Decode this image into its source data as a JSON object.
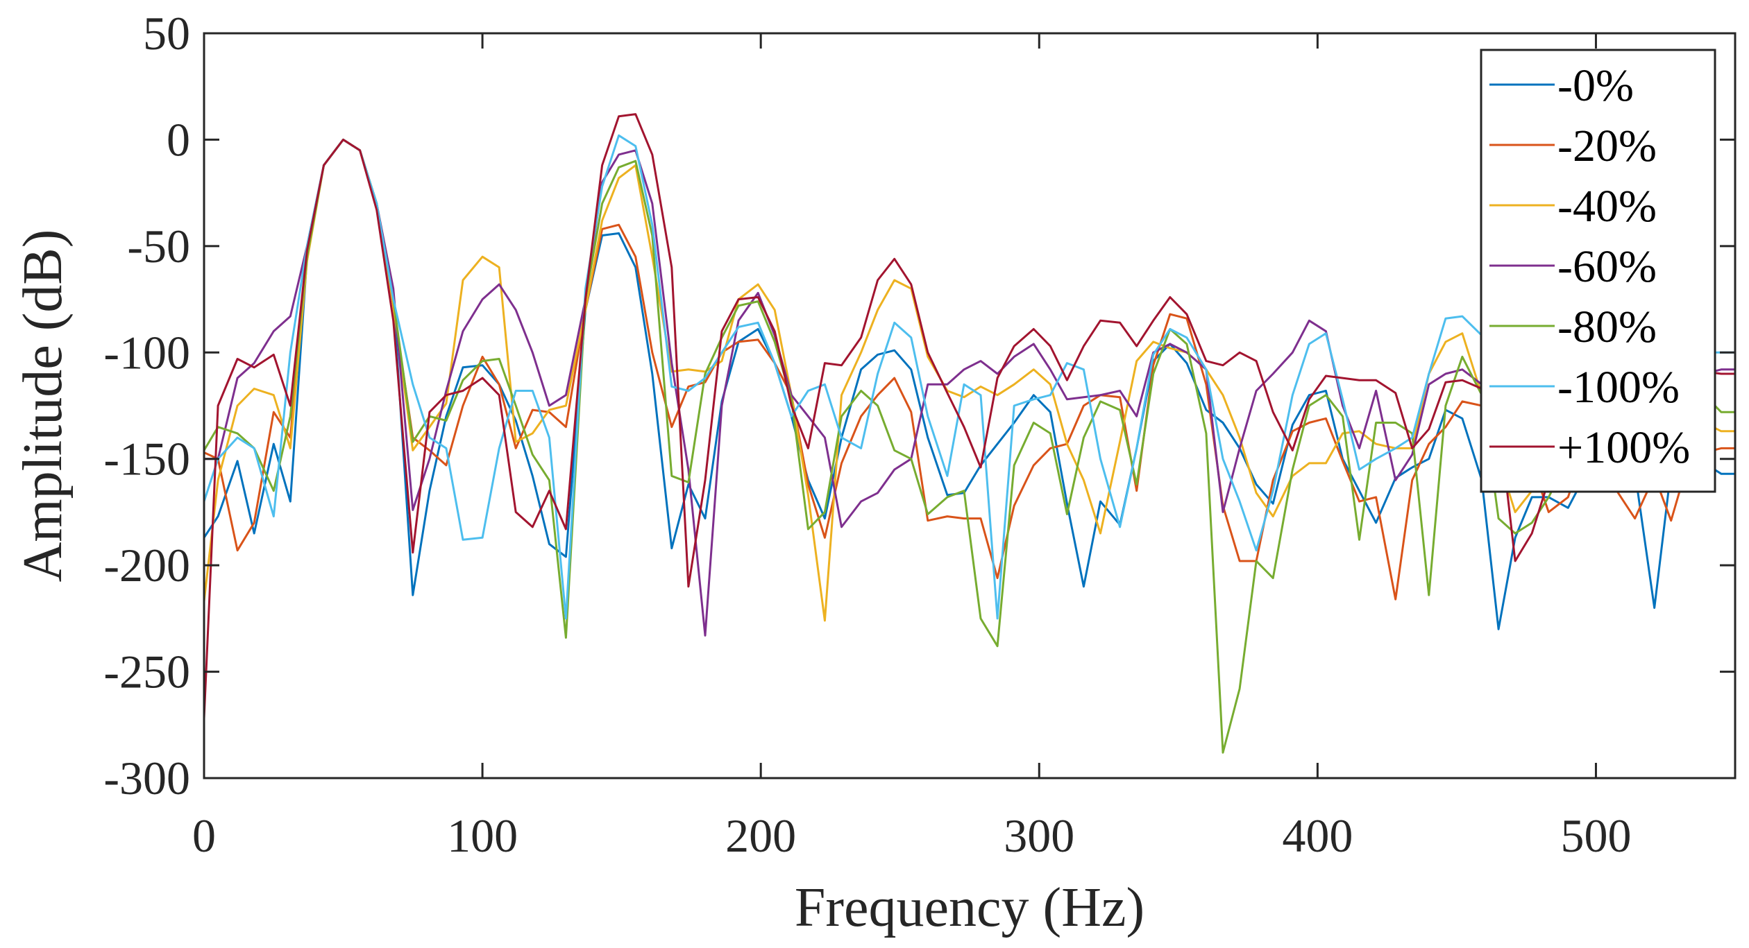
{
  "chart_data": {
    "type": "line",
    "xlabel": "Frequency (Hz)",
    "ylabel": "Amplitude (dB)",
    "xlim": [
      0,
      550
    ],
    "ylim": [
      -300,
      50
    ],
    "xticks": [
      0,
      100,
      200,
      300,
      400,
      500
    ],
    "yticks": [
      50,
      0,
      -50,
      -100,
      -150,
      -200,
      -250,
      -300
    ],
    "xtick_labels": [
      "0",
      "100",
      "200",
      "300",
      "400",
      "500"
    ],
    "ytick_labels": [
      "50",
      "0",
      "-50",
      "-100",
      "-150",
      "-200",
      "-250",
      "-300"
    ],
    "grid": false,
    "legend_position": "top-right",
    "x": [
      0,
      5,
      12,
      18,
      25,
      31,
      37,
      43,
      50,
      56,
      62,
      68,
      75,
      81,
      87,
      93,
      100,
      106,
      112,
      118,
      124,
      130,
      137,
      143,
      149,
      155,
      161,
      168,
      174,
      180,
      186,
      192,
      199,
      205,
      211,
      217,
      223,
      229,
      236,
      242,
      248,
      254,
      260,
      267,
      273,
      279,
      285,
      291,
      298,
      304,
      310,
      316,
      322,
      329,
      335,
      341,
      347,
      353,
      360,
      366,
      372,
      378,
      384,
      391,
      397,
      403,
      409,
      415,
      421,
      428,
      434,
      440,
      446,
      452,
      459,
      465,
      471,
      477,
      483,
      490,
      496,
      502,
      508,
      514,
      521,
      527,
      533,
      539,
      545,
      550
    ],
    "series": [
      {
        "name": "-0%",
        "color": "#0072BD",
        "values": [
          -187,
          -177,
          -151,
          -185,
          -143,
          -170,
          -55,
          -12,
          0,
          -5,
          -30,
          -75,
          -214,
          -165,
          -130,
          -107,
          -106,
          -115,
          -132,
          -158,
          -190,
          -196,
          -80,
          -45,
          -44,
          -60,
          -110,
          -192,
          -162,
          -178,
          -123,
          -95,
          -89,
          -105,
          -130,
          -160,
          -178,
          -140,
          -108,
          -101,
          -99,
          -108,
          -140,
          -167,
          -166,
          -153,
          -143,
          -133,
          -120,
          -128,
          -171,
          -210,
          -170,
          -181,
          -145,
          -104,
          -96,
          -105,
          -127,
          -133,
          -145,
          -162,
          -171,
          -134,
          -120,
          -118,
          -150,
          -165,
          -180,
          -159,
          -154,
          -150,
          -127,
          -131,
          -160,
          -230,
          -187,
          -168,
          -168,
          -173,
          -158,
          -155,
          -160,
          -156,
          -220,
          -155,
          -157,
          -152,
          -157,
          -157
        ]
      },
      {
        "name": "-20%",
        "color": "#D95319",
        "values": [
          -147,
          -150,
          -193,
          -180,
          -128,
          -140,
          -55,
          -12,
          0,
          -5,
          -32,
          -78,
          -140,
          -146,
          -153,
          -125,
          -102,
          -115,
          -145,
          -127,
          -128,
          -135,
          -80,
          -42,
          -40,
          -55,
          -100,
          -135,
          -116,
          -114,
          -100,
          -95,
          -94,
          -105,
          -120,
          -162,
          -187,
          -152,
          -130,
          -120,
          -112,
          -128,
          -179,
          -177,
          -178,
          -178,
          -206,
          -172,
          -153,
          -145,
          -143,
          -125,
          -120,
          -121,
          -165,
          -106,
          -82,
          -84,
          -115,
          -172,
          -198,
          -198,
          -160,
          -137,
          -133,
          -131,
          -151,
          -170,
          -168,
          -216,
          -160,
          -143,
          -135,
          -123,
          -125,
          -145,
          -135,
          -152,
          -175,
          -168,
          -145,
          -155,
          -166,
          -178,
          -158,
          -179,
          -152,
          -147,
          -145,
          -145
        ]
      },
      {
        "name": "-40%",
        "color": "#EDB120",
        "values": [
          -217,
          -160,
          -125,
          -117,
          -120,
          -145,
          -57,
          -12,
          0,
          -5,
          -30,
          -78,
          -146,
          -135,
          -124,
          -66,
          -55,
          -60,
          -142,
          -138,
          -127,
          -125,
          -80,
          -38,
          -18,
          -12,
          -55,
          -109,
          -108,
          -109,
          -104,
          -75,
          -68,
          -80,
          -120,
          -167,
          -226,
          -120,
          -100,
          -80,
          -66,
          -70,
          -102,
          -118,
          -121,
          -116,
          -120,
          -115,
          -108,
          -115,
          -143,
          -160,
          -185,
          -142,
          -104,
          -95,
          -98,
          -100,
          -108,
          -120,
          -140,
          -166,
          -177,
          -158,
          -152,
          -152,
          -138,
          -137,
          -143,
          -145,
          -145,
          -110,
          -95,
          -91,
          -120,
          -150,
          -175,
          -165,
          -163,
          -148,
          -150,
          -140,
          -146,
          -142,
          -148,
          -150,
          -140,
          -133,
          -137,
          -137
        ]
      },
      {
        "name": "-60%",
        "color": "#7E2F8E",
        "values": [
          -150,
          -150,
          -112,
          -105,
          -90,
          -83,
          -50,
          -12,
          0,
          -5,
          -30,
          -70,
          -174,
          -150,
          -118,
          -90,
          -75,
          -68,
          -80,
          -100,
          -125,
          -120,
          -75,
          -20,
          -7,
          -5,
          -30,
          -105,
          -155,
          -233,
          -125,
          -85,
          -72,
          -92,
          -120,
          -130,
          -140,
          -182,
          -170,
          -166,
          -155,
          -150,
          -115,
          -115,
          -108,
          -104,
          -110,
          -102,
          -96,
          -108,
          -122,
          -121,
          -120,
          -118,
          -130,
          -100,
          -96,
          -100,
          -108,
          -175,
          -145,
          -118,
          -110,
          -100,
          -85,
          -90,
          -125,
          -145,
          -118,
          -160,
          -148,
          -115,
          -110,
          -108,
          -115,
          -135,
          -150,
          -143,
          -140,
          -130,
          -130,
          -125,
          -125,
          -122,
          -118,
          -115,
          -113,
          -110,
          -108,
          -108
        ]
      },
      {
        "name": "-80%",
        "color": "#77AC30",
        "values": [
          -146,
          -135,
          -138,
          -145,
          -165,
          -130,
          -55,
          -12,
          0,
          -5,
          -30,
          -75,
          -142,
          -130,
          -132,
          -113,
          -104,
          -103,
          -125,
          -148,
          -160,
          -234,
          -75,
          -30,
          -13,
          -10,
          -45,
          -158,
          -161,
          -110,
          -93,
          -78,
          -76,
          -95,
          -122,
          -183,
          -175,
          -130,
          -118,
          -125,
          -146,
          -150,
          -176,
          -168,
          -165,
          -225,
          -238,
          -153,
          -133,
          -138,
          -176,
          -140,
          -123,
          -127,
          -162,
          -110,
          -89,
          -96,
          -138,
          -288,
          -258,
          -198,
          -206,
          -155,
          -125,
          -120,
          -130,
          -188,
          -133,
          -133,
          -138,
          -214,
          -125,
          -102,
          -120,
          -178,
          -185,
          -180,
          -168,
          -150,
          -140,
          -128,
          -130,
          -128,
          -125,
          -122,
          -120,
          -120,
          -128,
          -128
        ]
      },
      {
        "name": "-100%",
        "color": "#4DBEEE",
        "values": [
          -170,
          -150,
          -140,
          -145,
          -177,
          -100,
          -50,
          -12,
          0,
          -5,
          -30,
          -75,
          -115,
          -140,
          -145,
          -188,
          -187,
          -145,
          -118,
          -118,
          -140,
          -225,
          -70,
          -22,
          2,
          -3,
          -40,
          -116,
          -118,
          -112,
          -100,
          -88,
          -86,
          -105,
          -130,
          -118,
          -115,
          -140,
          -145,
          -110,
          -86,
          -93,
          -130,
          -158,
          -115,
          -120,
          -225,
          -125,
          -122,
          -120,
          -105,
          -108,
          -150,
          -182,
          -145,
          -101,
          -89,
          -93,
          -108,
          -150,
          -170,
          -193,
          -165,
          -120,
          -96,
          -91,
          -122,
          -155,
          -150,
          -145,
          -140,
          -110,
          -84,
          -83,
          -92,
          -115,
          -120,
          -140,
          -135,
          -130,
          -125,
          -115,
          -110,
          -105,
          -103,
          -102,
          -100,
          -100,
          -100,
          -100
        ]
      },
      {
        "name": "+100%",
        "color": "#A2142F",
        "values": [
          -272,
          -125,
          -103,
          -107,
          -101,
          -125,
          -52,
          -12,
          0,
          -5,
          -33,
          -85,
          -194,
          -128,
          -120,
          -118,
          -112,
          -120,
          -175,
          -182,
          -165,
          -183,
          -75,
          -12,
          11,
          12,
          -7,
          -60,
          -210,
          -160,
          -90,
          -75,
          -74,
          -90,
          -125,
          -145,
          -105,
          -106,
          -93,
          -66,
          -56,
          -68,
          -100,
          -119,
          -135,
          -154,
          -112,
          -97,
          -89,
          -97,
          -113,
          -97,
          -85,
          -86,
          -97,
          -85,
          -74,
          -82,
          -104,
          -106,
          -100,
          -104,
          -128,
          -146,
          -122,
          -111,
          -112,
          -113,
          -113,
          -119,
          -145,
          -136,
          -114,
          -113,
          -117,
          -130,
          -198,
          -185,
          -160,
          -140,
          -125,
          -118,
          -112,
          -109,
          -108,
          -108,
          -108,
          -109,
          -110,
          -110
        ]
      }
    ]
  }
}
